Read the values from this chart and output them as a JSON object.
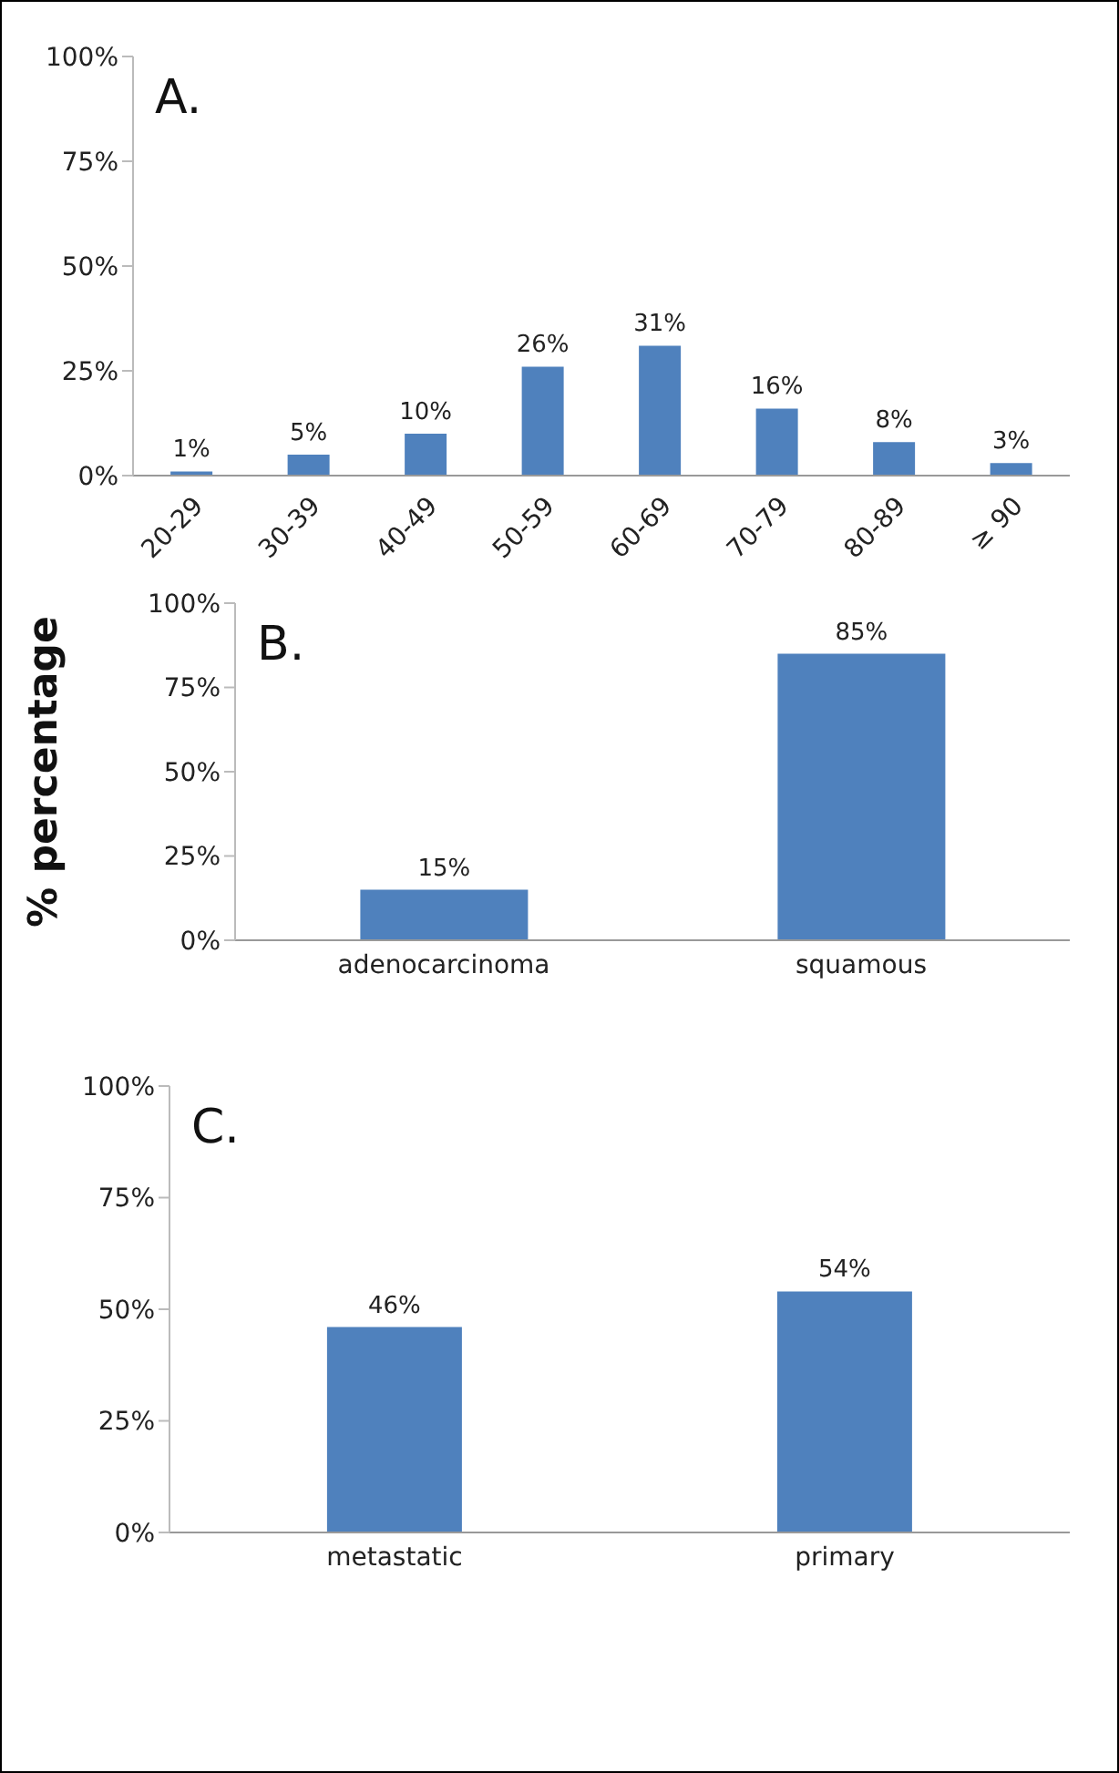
{
  "chart_data": [
    {
      "type": "bar",
      "title": "A.",
      "categories": [
        "20-29",
        "30-39",
        "40-49",
        "50-59",
        "60-69",
        "70-79",
        "80-89",
        "≥ 90"
      ],
      "values": [
        1,
        5,
        10,
        26,
        31,
        16,
        8,
        3
      ],
      "value_labels": [
        "1%",
        "5%",
        "10%",
        "26%",
        "31%",
        "16%",
        "8%",
        "3%"
      ],
      "color": "#4f81bd",
      "ylim": [
        0,
        100
      ],
      "yticks": [
        {
          "value": 0,
          "label": "0%"
        },
        {
          "value": 25,
          "label": "25%"
        },
        {
          "value": 50,
          "label": "50%"
        },
        {
          "value": 75,
          "label": "75%"
        },
        {
          "value": 100,
          "label": "100%"
        }
      ],
      "grid": false,
      "legend": false
    },
    {
      "type": "bar",
      "title": "B.",
      "ylabel": "% percentage",
      "categories": [
        "adenocarcinoma",
        "squamous"
      ],
      "values": [
        15,
        85
      ],
      "value_labels": [
        "15%",
        "85%"
      ],
      "color": "#4f81bd",
      "ylim": [
        0,
        100
      ],
      "yticks": [
        {
          "value": 0,
          "label": "0%"
        },
        {
          "value": 25,
          "label": "25%"
        },
        {
          "value": 50,
          "label": "50%"
        },
        {
          "value": 75,
          "label": "75%"
        },
        {
          "value": 100,
          "label": "100%"
        }
      ],
      "grid": false,
      "legend": false
    },
    {
      "type": "bar",
      "title": "C.",
      "categories": [
        "metastatic",
        "primary"
      ],
      "values": [
        46,
        54
      ],
      "value_labels": [
        "46%",
        "54%"
      ],
      "color": "#4f81bd",
      "ylim": [
        0,
        100
      ],
      "yticks": [
        {
          "value": 0,
          "label": "0%"
        },
        {
          "value": 25,
          "label": "25%"
        },
        {
          "value": 50,
          "label": "50%"
        },
        {
          "value": 75,
          "label": "75%"
        },
        {
          "value": 100,
          "label": "100%"
        }
      ],
      "grid": false,
      "legend": false
    }
  ]
}
